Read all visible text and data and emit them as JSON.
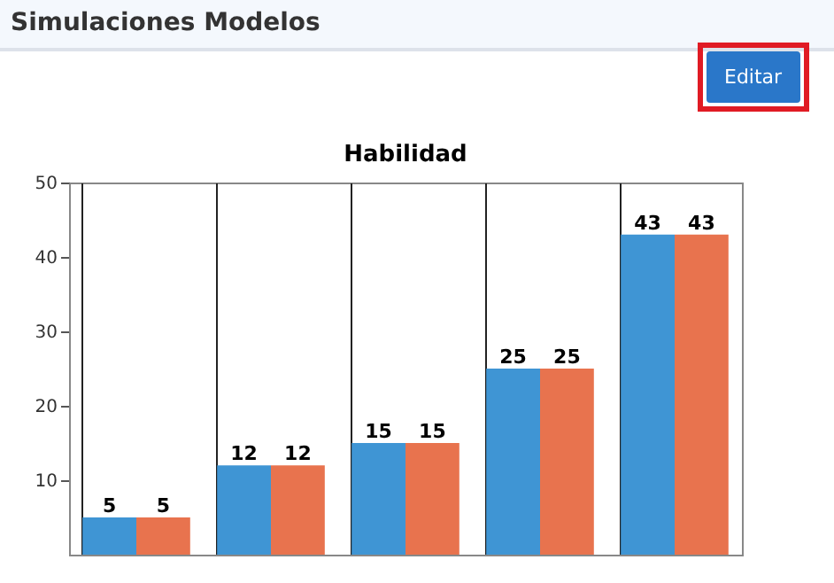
{
  "chart_data": {
    "type": "bar",
    "title": "Habilidad",
    "annotations": [
      "Simulaciones Modelos",
      "Editar"
    ],
    "categories": [
      null,
      null,
      null,
      null,
      null
    ],
    "series": [
      {
        "color": "#3f95d4",
        "values": [
          5,
          12,
          15,
          25,
          43
        ]
      },
      {
        "color": "#e8734e",
        "values": [
          5,
          12,
          15,
          25,
          43
        ]
      }
    ],
    "ylim": [
      0,
      50
    ],
    "yticks": [
      10,
      20,
      30,
      40,
      50
    ],
    "grid": "x",
    "data_labels": true
  }
}
